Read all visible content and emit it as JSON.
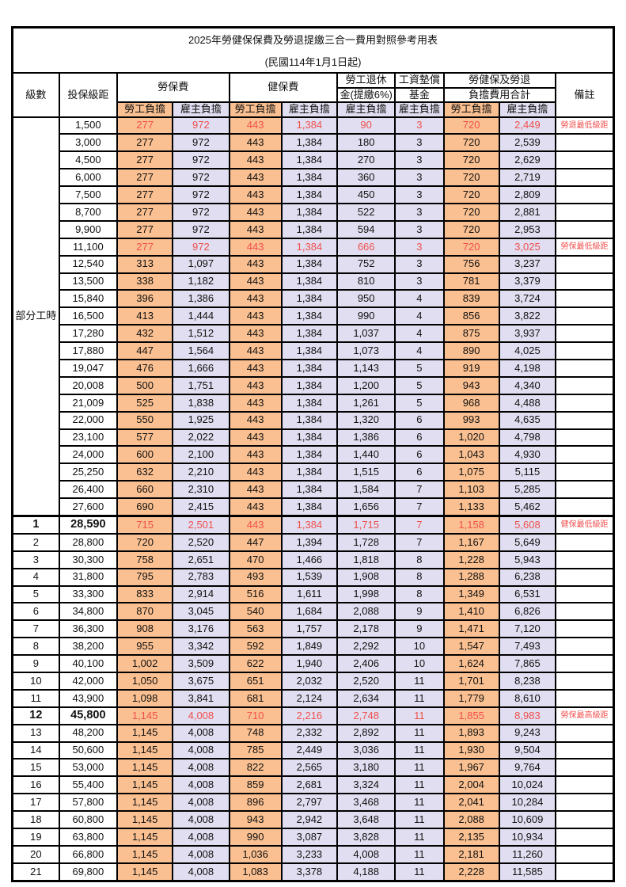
{
  "page": {
    "title": "2025年勞健保保費及勞退提繳三合一費用對照參考用表",
    "subtitle": "(民國114年1月1日起)"
  },
  "colors": {
    "employee_bg": "#FAC091",
    "employer_bg": "#E0DEF0",
    "highlight_red": "#F0504E",
    "grid_border": "#000000"
  },
  "header": {
    "level": "級數",
    "salary_bracket": "投保級距",
    "labor_insurance": "勞保費",
    "health_insurance": "健保費",
    "pension_line1": "勞工退休",
    "pension_line2": "金(提繳6%)",
    "wage_fund_line1": "工資墊償",
    "wage_fund_line2": "基金",
    "total_line1": "勞健保及勞退",
    "total_line2": "負擔費用合計",
    "remark": "備註",
    "employee_share": "勞工負擔",
    "employer_share": "雇主負擔"
  },
  "part_time": {
    "label": "部分工時",
    "row_span": 23
  },
  "rows": [
    {
      "level": null,
      "salary": "1,500",
      "values": [
        "277",
        "972",
        "443",
        "1,384",
        "90",
        "3",
        "720",
        "2,449"
      ],
      "remark": "勞退最低級距",
      "highlight": true,
      "bold": false,
      "thick_top": false
    },
    {
      "level": null,
      "salary": "3,000",
      "values": [
        "277",
        "972",
        "443",
        "1,384",
        "180",
        "3",
        "720",
        "2,539"
      ],
      "remark": "",
      "highlight": false,
      "bold": false,
      "thick_top": false
    },
    {
      "level": null,
      "salary": "4,500",
      "values": [
        "277",
        "972",
        "443",
        "1,384",
        "270",
        "3",
        "720",
        "2,629"
      ],
      "remark": "",
      "highlight": false,
      "bold": false,
      "thick_top": false
    },
    {
      "level": null,
      "salary": "6,000",
      "values": [
        "277",
        "972",
        "443",
        "1,384",
        "360",
        "3",
        "720",
        "2,719"
      ],
      "remark": "",
      "highlight": false,
      "bold": false,
      "thick_top": false
    },
    {
      "level": null,
      "salary": "7,500",
      "values": [
        "277",
        "972",
        "443",
        "1,384",
        "450",
        "3",
        "720",
        "2,809"
      ],
      "remark": "",
      "highlight": false,
      "bold": false,
      "thick_top": false
    },
    {
      "level": null,
      "salary": "8,700",
      "values": [
        "277",
        "972",
        "443",
        "1,384",
        "522",
        "3",
        "720",
        "2,881"
      ],
      "remark": "",
      "highlight": false,
      "bold": false,
      "thick_top": false
    },
    {
      "level": null,
      "salary": "9,900",
      "values": [
        "277",
        "972",
        "443",
        "1,384",
        "594",
        "3",
        "720",
        "2,953"
      ],
      "remark": "",
      "highlight": false,
      "bold": false,
      "thick_top": false
    },
    {
      "level": null,
      "salary": "11,100",
      "values": [
        "277",
        "972",
        "443",
        "1,384",
        "666",
        "3",
        "720",
        "3,025"
      ],
      "remark": "勞保最低級距",
      "highlight": true,
      "bold": false,
      "thick_top": false
    },
    {
      "level": null,
      "salary": "12,540",
      "values": [
        "313",
        "1,097",
        "443",
        "1,384",
        "752",
        "3",
        "756",
        "3,237"
      ],
      "remark": "",
      "highlight": false,
      "bold": false,
      "thick_top": false
    },
    {
      "level": null,
      "salary": "13,500",
      "values": [
        "338",
        "1,182",
        "443",
        "1,384",
        "810",
        "3",
        "781",
        "3,379"
      ],
      "remark": "",
      "highlight": false,
      "bold": false,
      "thick_top": false
    },
    {
      "level": null,
      "salary": "15,840",
      "values": [
        "396",
        "1,386",
        "443",
        "1,384",
        "950",
        "4",
        "839",
        "3,724"
      ],
      "remark": "",
      "highlight": false,
      "bold": false,
      "thick_top": false
    },
    {
      "level": null,
      "salary": "16,500",
      "values": [
        "413",
        "1,444",
        "443",
        "1,384",
        "990",
        "4",
        "856",
        "3,822"
      ],
      "remark": "",
      "highlight": false,
      "bold": false,
      "thick_top": false
    },
    {
      "level": null,
      "salary": "17,280",
      "values": [
        "432",
        "1,512",
        "443",
        "1,384",
        "1,037",
        "4",
        "875",
        "3,937"
      ],
      "remark": "",
      "highlight": false,
      "bold": false,
      "thick_top": false
    },
    {
      "level": null,
      "salary": "17,880",
      "values": [
        "447",
        "1,564",
        "443",
        "1,384",
        "1,073",
        "4",
        "890",
        "4,025"
      ],
      "remark": "",
      "highlight": false,
      "bold": false,
      "thick_top": false
    },
    {
      "level": null,
      "salary": "19,047",
      "values": [
        "476",
        "1,666",
        "443",
        "1,384",
        "1,143",
        "5",
        "919",
        "4,198"
      ],
      "remark": "",
      "highlight": false,
      "bold": false,
      "thick_top": false
    },
    {
      "level": null,
      "salary": "20,008",
      "values": [
        "500",
        "1,751",
        "443",
        "1,384",
        "1,200",
        "5",
        "943",
        "4,340"
      ],
      "remark": "",
      "highlight": false,
      "bold": false,
      "thick_top": false
    },
    {
      "level": null,
      "salary": "21,009",
      "values": [
        "525",
        "1,838",
        "443",
        "1,384",
        "1,261",
        "5",
        "968",
        "4,488"
      ],
      "remark": "",
      "highlight": false,
      "bold": false,
      "thick_top": false
    },
    {
      "level": null,
      "salary": "22,000",
      "values": [
        "550",
        "1,925",
        "443",
        "1,384",
        "1,320",
        "6",
        "993",
        "4,635"
      ],
      "remark": "",
      "highlight": false,
      "bold": false,
      "thick_top": false
    },
    {
      "level": null,
      "salary": "23,100",
      "values": [
        "577",
        "2,022",
        "443",
        "1,384",
        "1,386",
        "6",
        "1,020",
        "4,798"
      ],
      "remark": "",
      "highlight": false,
      "bold": false,
      "thick_top": false
    },
    {
      "level": null,
      "salary": "24,000",
      "values": [
        "600",
        "2,100",
        "443",
        "1,384",
        "1,440",
        "6",
        "1,043",
        "4,930"
      ],
      "remark": "",
      "highlight": false,
      "bold": false,
      "thick_top": false
    },
    {
      "level": null,
      "salary": "25,250",
      "values": [
        "632",
        "2,210",
        "443",
        "1,384",
        "1,515",
        "6",
        "1,075",
        "5,115"
      ],
      "remark": "",
      "highlight": false,
      "bold": false,
      "thick_top": false
    },
    {
      "level": null,
      "salary": "26,400",
      "values": [
        "660",
        "2,310",
        "443",
        "1,384",
        "1,584",
        "7",
        "1,103",
        "5,285"
      ],
      "remark": "",
      "highlight": false,
      "bold": false,
      "thick_top": false
    },
    {
      "level": null,
      "salary": "27,600",
      "values": [
        "690",
        "2,415",
        "443",
        "1,384",
        "1,656",
        "7",
        "1,133",
        "5,462"
      ],
      "remark": "",
      "highlight": false,
      "bold": false,
      "thick_top": false
    },
    {
      "level": "1",
      "salary": "28,590",
      "values": [
        "715",
        "2,501",
        "443",
        "1,384",
        "1,715",
        "7",
        "1,158",
        "5,608"
      ],
      "remark": "健保最低級距",
      "highlight": true,
      "bold": true,
      "thick_top": true
    },
    {
      "level": "2",
      "salary": "28,800",
      "values": [
        "720",
        "2,520",
        "447",
        "1,394",
        "1,728",
        "7",
        "1,167",
        "5,649"
      ],
      "remark": "",
      "highlight": false,
      "bold": false,
      "thick_top": false
    },
    {
      "level": "3",
      "salary": "30,300",
      "values": [
        "758",
        "2,651",
        "470",
        "1,466",
        "1,818",
        "8",
        "1,228",
        "5,943"
      ],
      "remark": "",
      "highlight": false,
      "bold": false,
      "thick_top": false
    },
    {
      "level": "4",
      "salary": "31,800",
      "values": [
        "795",
        "2,783",
        "493",
        "1,539",
        "1,908",
        "8",
        "1,288",
        "6,238"
      ],
      "remark": "",
      "highlight": false,
      "bold": false,
      "thick_top": false
    },
    {
      "level": "5",
      "salary": "33,300",
      "values": [
        "833",
        "2,914",
        "516",
        "1,611",
        "1,998",
        "8",
        "1,349",
        "6,531"
      ],
      "remark": "",
      "highlight": false,
      "bold": false,
      "thick_top": false
    },
    {
      "level": "6",
      "salary": "34,800",
      "values": [
        "870",
        "3,045",
        "540",
        "1,684",
        "2,088",
        "9",
        "1,410",
        "6,826"
      ],
      "remark": "",
      "highlight": false,
      "bold": false,
      "thick_top": false
    },
    {
      "level": "7",
      "salary": "36,300",
      "values": [
        "908",
        "3,176",
        "563",
        "1,757",
        "2,178",
        "9",
        "1,471",
        "7,120"
      ],
      "remark": "",
      "highlight": false,
      "bold": false,
      "thick_top": false
    },
    {
      "level": "8",
      "salary": "38,200",
      "values": [
        "955",
        "3,342",
        "592",
        "1,849",
        "2,292",
        "10",
        "1,547",
        "7,493"
      ],
      "remark": "",
      "highlight": false,
      "bold": false,
      "thick_top": false
    },
    {
      "level": "9",
      "salary": "40,100",
      "values": [
        "1,002",
        "3,509",
        "622",
        "1,940",
        "2,406",
        "10",
        "1,624",
        "7,865"
      ],
      "remark": "",
      "highlight": false,
      "bold": false,
      "thick_top": false
    },
    {
      "level": "10",
      "salary": "42,000",
      "values": [
        "1,050",
        "3,675",
        "651",
        "2,032",
        "2,520",
        "11",
        "1,701",
        "8,238"
      ],
      "remark": "",
      "highlight": false,
      "bold": false,
      "thick_top": false
    },
    {
      "level": "11",
      "salary": "43,900",
      "values": [
        "1,098",
        "3,841",
        "681",
        "2,124",
        "2,634",
        "11",
        "1,779",
        "8,610"
      ],
      "remark": "",
      "highlight": false,
      "bold": false,
      "thick_top": false
    },
    {
      "level": "12",
      "salary": "45,800",
      "values": [
        "1,145",
        "4,008",
        "710",
        "2,216",
        "2,748",
        "11",
        "1,855",
        "8,983"
      ],
      "remark": "勞保最高級距",
      "highlight": true,
      "bold": true,
      "thick_top": false
    },
    {
      "level": "13",
      "salary": "48,200",
      "values": [
        "1,145",
        "4,008",
        "748",
        "2,332",
        "2,892",
        "11",
        "1,893",
        "9,243"
      ],
      "remark": "",
      "highlight": false,
      "bold": false,
      "thick_top": false
    },
    {
      "level": "14",
      "salary": "50,600",
      "values": [
        "1,145",
        "4,008",
        "785",
        "2,449",
        "3,036",
        "11",
        "1,930",
        "9,504"
      ],
      "remark": "",
      "highlight": false,
      "bold": false,
      "thick_top": false
    },
    {
      "level": "15",
      "salary": "53,000",
      "values": [
        "1,145",
        "4,008",
        "822",
        "2,565",
        "3,180",
        "11",
        "1,967",
        "9,764"
      ],
      "remark": "",
      "highlight": false,
      "bold": false,
      "thick_top": false
    },
    {
      "level": "16",
      "salary": "55,400",
      "values": [
        "1,145",
        "4,008",
        "859",
        "2,681",
        "3,324",
        "11",
        "2,004",
        "10,024"
      ],
      "remark": "",
      "highlight": false,
      "bold": false,
      "thick_top": false
    },
    {
      "level": "17",
      "salary": "57,800",
      "values": [
        "1,145",
        "4,008",
        "896",
        "2,797",
        "3,468",
        "11",
        "2,041",
        "10,284"
      ],
      "remark": "",
      "highlight": false,
      "bold": false,
      "thick_top": false
    },
    {
      "level": "18",
      "salary": "60,800",
      "values": [
        "1,145",
        "4,008",
        "943",
        "2,942",
        "3,648",
        "11",
        "2,088",
        "10,609"
      ],
      "remark": "",
      "highlight": false,
      "bold": false,
      "thick_top": false
    },
    {
      "level": "19",
      "salary": "63,800",
      "values": [
        "1,145",
        "4,008",
        "990",
        "3,087",
        "3,828",
        "11",
        "2,135",
        "10,934"
      ],
      "remark": "",
      "highlight": false,
      "bold": false,
      "thick_top": false
    },
    {
      "level": "20",
      "salary": "66,800",
      "values": [
        "1,145",
        "4,008",
        "1,036",
        "3,233",
        "4,008",
        "11",
        "2,181",
        "11,260"
      ],
      "remark": "",
      "highlight": false,
      "bold": false,
      "thick_top": false
    },
    {
      "level": "21",
      "salary": "69,800",
      "values": [
        "1,145",
        "4,008",
        "1,083",
        "3,378",
        "4,188",
        "11",
        "2,228",
        "11,585"
      ],
      "remark": "",
      "highlight": false,
      "bold": false,
      "thick_top": false
    }
  ]
}
